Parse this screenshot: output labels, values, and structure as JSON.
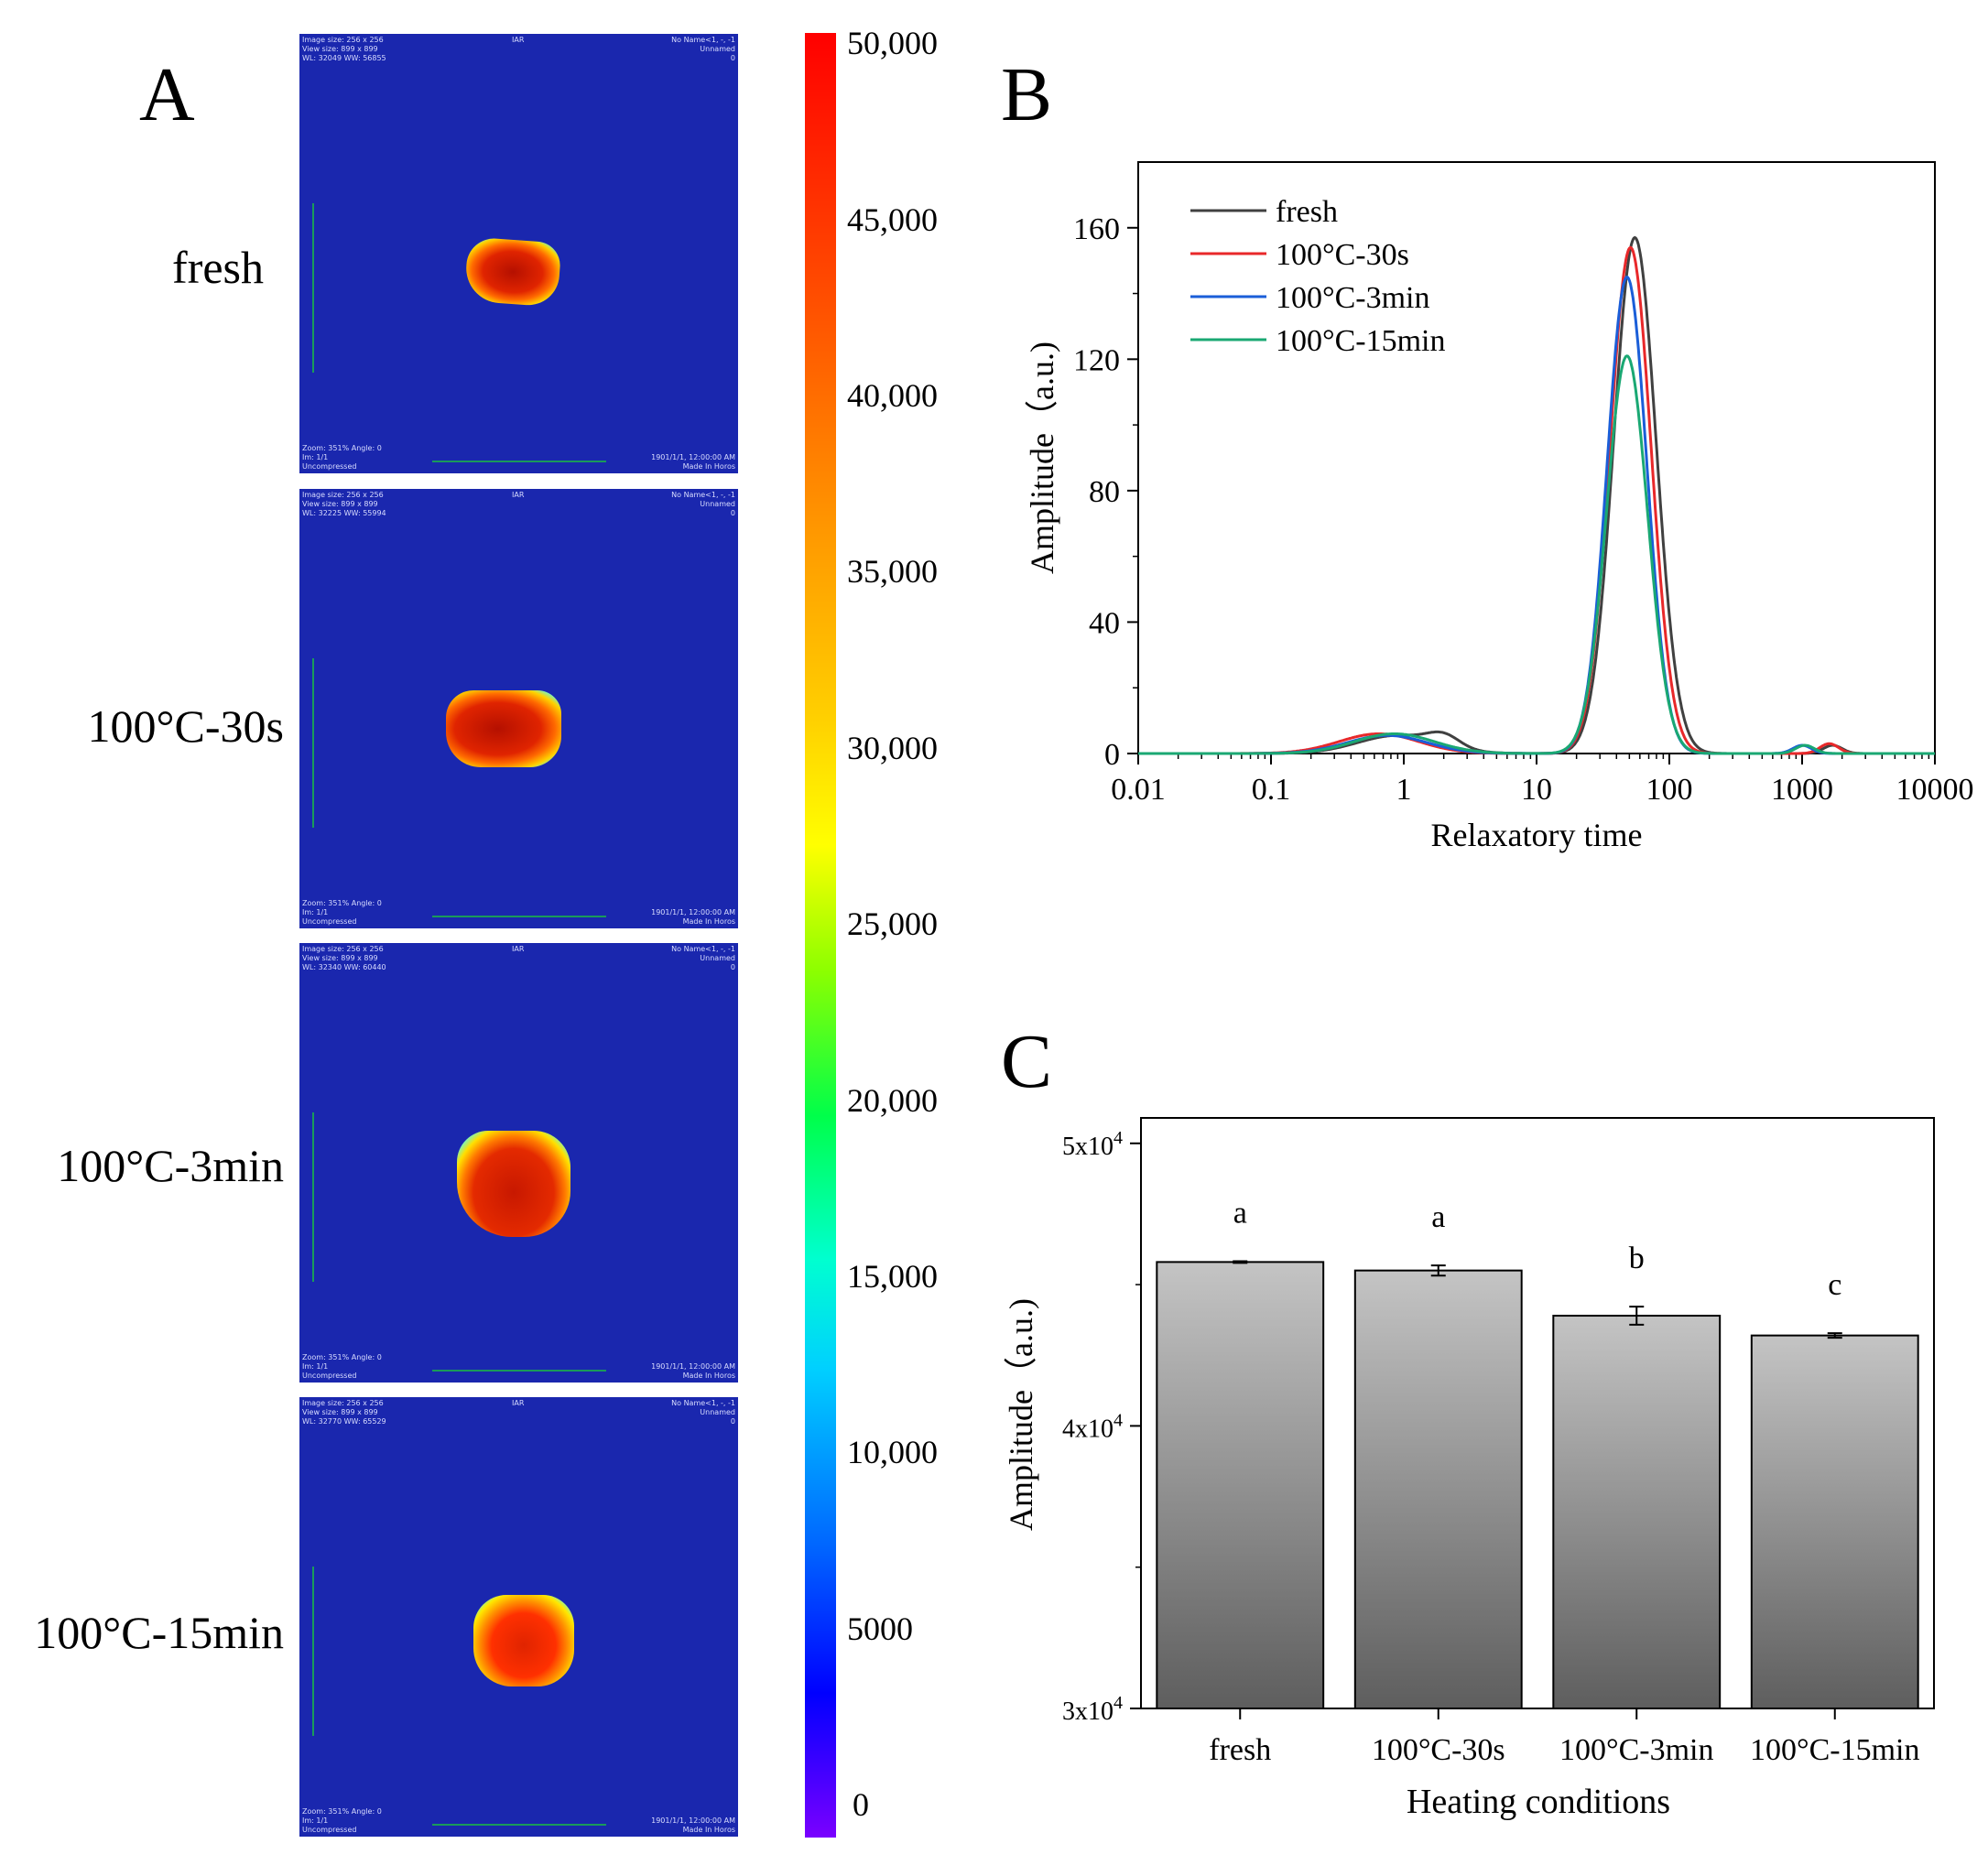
{
  "panels": {
    "a": "A",
    "b": "B",
    "c": "C"
  },
  "panel_a": {
    "rows": [
      {
        "label": "fresh"
      },
      {
        "label": "100°C-30s"
      },
      {
        "label": "100°C-3min"
      },
      {
        "label": "100°C-15min"
      }
    ],
    "colorbar": {
      "ticks": [
        "50,000",
        "45,000",
        "40,000",
        "35,000",
        "30,000",
        "25,000",
        "20,000",
        "15,000",
        "10,000",
        "5000",
        "0"
      ],
      "colors": [
        "#7a00ff",
        "#0000ff",
        "#00ffd0",
        "#ffff00",
        "#ff9a00",
        "#ff0000"
      ]
    }
  },
  "chart_data": [
    {
      "type": "line",
      "panel": "B",
      "xlabel": "Relaxatory time",
      "ylabel": "Amplitude（a.u.)",
      "xscale": "log",
      "xlim": [
        0.01,
        10000
      ],
      "ylim": [
        0,
        180
      ],
      "xticks": [
        "0.01",
        "0.1",
        "1",
        "10",
        "100",
        "1000",
        "10000"
      ],
      "yticks": [
        "0",
        "40",
        "80",
        "120",
        "160"
      ],
      "legend_position": "top-left",
      "series": [
        {
          "name": "fresh",
          "color": "#404040",
          "peaks": [
            {
              "center": 0.9,
              "height": 5.5,
              "width": 0.3
            },
            {
              "center": 2.0,
              "height": 3.5,
              "width": 0.12
            },
            {
              "center": 55,
              "height": 157,
              "width": 0.16
            },
            {
              "center": 1700,
              "height": 2.5,
              "width": 0.07
            }
          ]
        },
        {
          "name": "100°C-30s",
          "color": "#e8282a",
          "peaks": [
            {
              "center": 0.65,
              "height": 6.0,
              "width": 0.3
            },
            {
              "center": 51,
              "height": 154,
              "width": 0.155
            },
            {
              "center": 1600,
              "height": 3.0,
              "width": 0.07
            }
          ]
        },
        {
          "name": "100°C-3min",
          "color": "#1a5ed8",
          "peaks": [
            {
              "center": 0.75,
              "height": 5.5,
              "width": 0.3
            },
            {
              "center": 48,
              "height": 145,
              "width": 0.15
            },
            {
              "center": 1000,
              "height": 2.5,
              "width": 0.07
            }
          ]
        },
        {
          "name": "100°C-15min",
          "color": "#1aa873",
          "peaks": [
            {
              "center": 0.85,
              "height": 6.0,
              "width": 0.3
            },
            {
              "center": 48,
              "height": 121,
              "width": 0.155
            },
            {
              "center": 1050,
              "height": 2.5,
              "width": 0.07
            }
          ]
        }
      ]
    },
    {
      "type": "bar",
      "panel": "C",
      "xlabel": "Heating conditions",
      "ylabel": "Amplitude（a.u.)",
      "categories": [
        "fresh",
        "100°C-30s",
        "100°C-3min",
        "100°C-15min"
      ],
      "values": [
        45800,
        45500,
        43900,
        43200
      ],
      "errors": [
        30,
        180,
        320,
        80
      ],
      "letters": [
        "a",
        "a",
        "b",
        "c"
      ],
      "ylim": [
        30000,
        50900
      ],
      "yticks": [
        {
          "value": 50000,
          "mantissa": "5x10",
          "exp": "4"
        },
        {
          "value": 40000,
          "mantissa": "4x10",
          "exp": "4"
        },
        {
          "value": 30000,
          "mantissa": "3x10",
          "exp": "4"
        }
      ]
    }
  ]
}
